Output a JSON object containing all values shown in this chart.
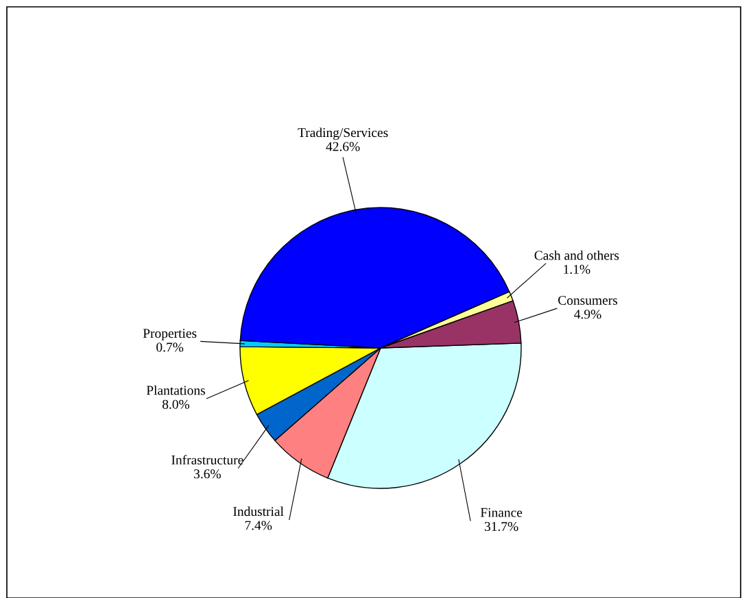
{
  "chart_data": {
    "type": "pie",
    "categories": [
      "Finance",
      "Industrial",
      "Infrastructure",
      "Plantations",
      "Properties",
      "Trading/Services",
      "Cash and others",
      "Consumers"
    ],
    "values": [
      31.7,
      7.4,
      3.6,
      8.0,
      0.7,
      42.6,
      1.1,
      4.9
    ],
    "value_labels": [
      "31.7%",
      "7.4%",
      "3.6%",
      "8.0%",
      "0.7%",
      "42.6%",
      "1.1%",
      "4.9%"
    ],
    "colors": [
      "#ccffff",
      "#ff8080",
      "#0066cc",
      "#ffff00",
      "#00ccff",
      "#0000ff",
      "#ffff99",
      "#993366"
    ],
    "legend": false
  }
}
